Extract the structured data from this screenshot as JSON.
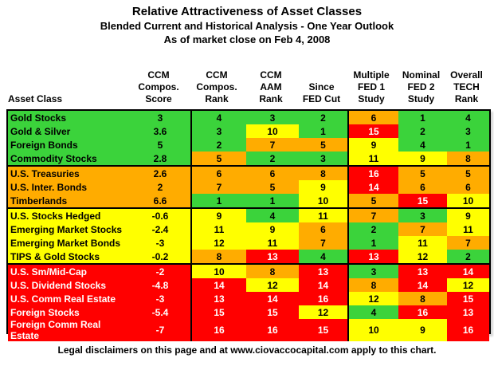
{
  "chart_data": {
    "type": "table",
    "title": "Relative Attractiveness of Asset Classes",
    "subtitle": "Blended Current and Historical Analysis - One Year Outlook",
    "as_of": "As of market close on Feb 4, 2008",
    "footer": "Legal disclaimers on this page and at www.ciovaccocapital.com apply to this chart.",
    "columns": [
      "Asset Class",
      "CCM Compos. Score",
      "CCM Compos. Rank",
      "CCM AAM Rank",
      "Since FED Cut",
      "Multiple FED 1 Study",
      "Nominal FED 2 Study",
      "Overall TECH Rank"
    ],
    "header_lines": [
      "Asset Class",
      "CCM\nCompos.\nScore",
      "CCM\nCompos.\nRank",
      "CCM\nAAM\nRank",
      "Since\nFED Cut",
      "Multiple\nFED 1\nStudy",
      "Nominal\nFED 2\nStudy",
      "Overall\nTECH\nRank"
    ],
    "colors": {
      "green": "#3BD33B",
      "orange": "#FFAC00",
      "yellow": "#FFFF00",
      "red": "#FF0000",
      "red_text": "#FFFFFF",
      "border": "#000000"
    },
    "rank_color_rule": {
      "green_max": 4,
      "orange_max": 8,
      "yellow_max": 12,
      "red_max": 16
    },
    "groups": [
      {
        "color": "green",
        "rows": [
          {
            "name": "Gold Stocks",
            "score": "3",
            "ranks": [
              4,
              3,
              2,
              6,
              1,
              4
            ]
          },
          {
            "name": "Gold & Silver",
            "score": "3.6",
            "ranks": [
              3,
              10,
              1,
              15,
              2,
              3
            ]
          },
          {
            "name": "Foreign Bonds",
            "score": "5",
            "ranks": [
              2,
              7,
              5,
              9,
              4,
              1
            ]
          },
          {
            "name": "Commodity Stocks",
            "score": "2.8",
            "ranks": [
              5,
              2,
              3,
              11,
              9,
              8
            ]
          }
        ]
      },
      {
        "color": "orange",
        "rows": [
          {
            "name": "U.S. Treasuries",
            "score": "2.6",
            "ranks": [
              6,
              6,
              8,
              16,
              5,
              5
            ]
          },
          {
            "name": "U.S. Inter. Bonds",
            "score": "2",
            "ranks": [
              7,
              5,
              9,
              14,
              6,
              6
            ]
          },
          {
            "name": "Timberlands",
            "score": "6.6",
            "ranks": [
              1,
              1,
              10,
              5,
              15,
              10
            ]
          }
        ]
      },
      {
        "color": "yellow",
        "rows": [
          {
            "name": "U.S. Stocks Hedged",
            "score": "-0.6",
            "ranks": [
              9,
              4,
              11,
              7,
              3,
              9
            ]
          },
          {
            "name": "Emerging Market Stocks",
            "score": "-2.4",
            "ranks": [
              11,
              9,
              6,
              2,
              7,
              11
            ]
          },
          {
            "name": "Emerging Market Bonds",
            "score": "-3",
            "ranks": [
              12,
              11,
              7,
              1,
              11,
              7
            ]
          },
          {
            "name": "TIPS & Gold Stocks",
            "score": "-0.2",
            "ranks": [
              8,
              13,
              4,
              13,
              12,
              2
            ]
          }
        ]
      },
      {
        "color": "red",
        "rows": [
          {
            "name": "U.S. Sm/Mid-Cap",
            "score": "-2",
            "ranks": [
              10,
              8,
              13,
              3,
              13,
              14
            ]
          },
          {
            "name": "U.S. Dividend Stocks",
            "score": "-4.8",
            "ranks": [
              14,
              12,
              14,
              8,
              14,
              12
            ]
          },
          {
            "name": "U.S. Comm Real Estate",
            "score": "-3",
            "ranks": [
              13,
              14,
              16,
              12,
              8,
              15
            ]
          },
          {
            "name": "Foreign Stocks",
            "score": "-5.4",
            "ranks": [
              15,
              15,
              12,
              4,
              16,
              13
            ]
          },
          {
            "name": "Foreign Comm Real Estate",
            "score": "-7",
            "ranks": [
              16,
              16,
              15,
              10,
              9,
              16
            ]
          }
        ]
      }
    ]
  }
}
